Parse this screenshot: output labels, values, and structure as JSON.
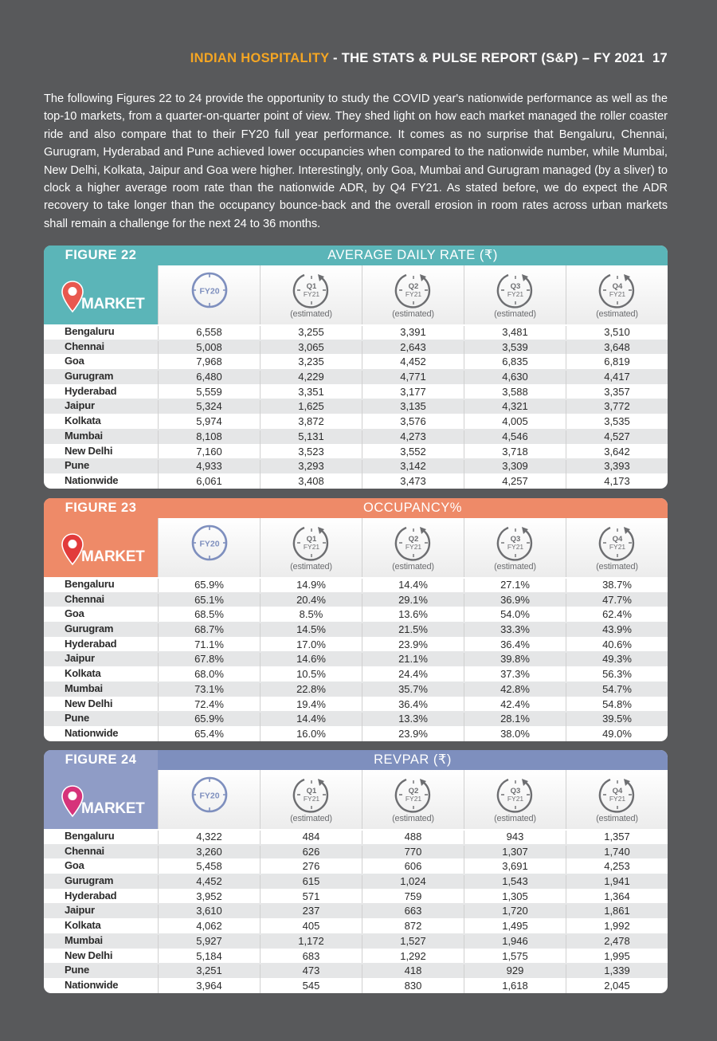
{
  "header": {
    "highlight": "INDIAN HOSPITALITY",
    "rest": " - THE STATS & PULSE REPORT (S&P) – FY 2021",
    "page": "17"
  },
  "intro": "The following Figures 22 to 24 provide the opportunity to study the COVID year's nationwide performance as well as the top-10 markets, from a quarter-on-quarter point of view. They shed light on how each market managed the roller coaster ride and also compare that to their FY20 full year performance. It comes as no surprise that Bengaluru, Chennai, Gurugram, Hyderabad and Pune achieved lower occupancies when compared to the nationwide number, while Mumbai, New Delhi, Kolkata, Jaipur and Goa were higher. Interestingly, only Goa, Mumbai and Gurugram managed (by a sliver) to clock a higher average room rate than the nationwide ADR, by Q4 FY21. As stated before, we do expect the ADR recovery to take longer than the occupancy bounce-back and the overall erosion in room rates across urban markets shall remain a challenge for the next 24 to 36 months.",
  "columns": {
    "market_label": "MARKET",
    "fy20_label": "FY20",
    "quarters": [
      {
        "q": "Q1",
        "fy": "FY21",
        "est": "(estimated)"
      },
      {
        "q": "Q2",
        "fy": "FY21",
        "est": "(estimated)"
      },
      {
        "q": "Q3",
        "fy": "FY21",
        "est": "(estimated)"
      },
      {
        "q": "Q4",
        "fy": "FY21",
        "est": "(estimated)"
      }
    ]
  },
  "figures": [
    {
      "title": "FIGURE 22",
      "metric": "AVERAGE DAILY RATE (₹)",
      "colors": {
        "band": "#5bb5b8",
        "market": "#5bb5b8",
        "pin": "#e8584f",
        "ring": "#7e8fbe"
      },
      "rows": [
        {
          "market": "Bengaluru",
          "values": [
            "6,558",
            "3,255",
            "3,391",
            "3,481",
            "3,510"
          ]
        },
        {
          "market": "Chennai",
          "values": [
            "5,008",
            "3,065",
            "2,643",
            "3,539",
            "3,648"
          ]
        },
        {
          "market": "Goa",
          "values": [
            "7,968",
            "3,235",
            "4,452",
            "6,835",
            "6,819"
          ]
        },
        {
          "market": "Gurugram",
          "values": [
            "6,480",
            "4,229",
            "4,771",
            "4,630",
            "4,417"
          ]
        },
        {
          "market": "Hyderabad",
          "values": [
            "5,559",
            "3,351",
            "3,177",
            "3,588",
            "3,357"
          ]
        },
        {
          "market": "Jaipur",
          "values": [
            "5,324",
            "1,625",
            "3,135",
            "4,321",
            "3,772"
          ]
        },
        {
          "market": "Kolkata",
          "values": [
            "5,974",
            "3,872",
            "3,576",
            "4,005",
            "3,535"
          ]
        },
        {
          "market": "Mumbai",
          "values": [
            "8,108",
            "5,131",
            "4,273",
            "4,546",
            "4,527"
          ]
        },
        {
          "market": "New Delhi",
          "values": [
            "7,160",
            "3,523",
            "3,552",
            "3,718",
            "3,642"
          ]
        },
        {
          "market": "Pune",
          "values": [
            "4,933",
            "3,293",
            "3,142",
            "3,309",
            "3,393"
          ]
        },
        {
          "market": "Nationwide",
          "values": [
            "6,061",
            "3,408",
            "3,473",
            "4,257",
            "4,173"
          ]
        }
      ]
    },
    {
      "title": "FIGURE 23",
      "metric": "OCCUPANCY%",
      "colors": {
        "band": "#ee8a68",
        "market": "#ee8a68",
        "pin": "#e23b3b",
        "ring": "#7e8fbe"
      },
      "rows": [
        {
          "market": "Bengaluru",
          "values": [
            "65.9%",
            "14.9%",
            "14.4%",
            "27.1%",
            "38.7%"
          ]
        },
        {
          "market": "Chennai",
          "values": [
            "65.1%",
            "20.4%",
            "29.1%",
            "36.9%",
            "47.7%"
          ]
        },
        {
          "market": "Goa",
          "values": [
            "68.5%",
            "8.5%",
            "13.6%",
            "54.0%",
            "62.4%"
          ]
        },
        {
          "market": "Gurugram",
          "values": [
            "68.7%",
            "14.5%",
            "21.5%",
            "33.3%",
            "43.9%"
          ]
        },
        {
          "market": "Hyderabad",
          "values": [
            "71.1%",
            "17.0%",
            "23.9%",
            "36.4%",
            "40.6%"
          ]
        },
        {
          "market": "Jaipur",
          "values": [
            "67.8%",
            "14.6%",
            "21.1%",
            "39.8%",
            "49.3%"
          ]
        },
        {
          "market": "Kolkata",
          "values": [
            "68.0%",
            "10.5%",
            "24.4%",
            "37.3%",
            "56.3%"
          ]
        },
        {
          "market": "Mumbai",
          "values": [
            "73.1%",
            "22.8%",
            "35.7%",
            "42.8%",
            "54.7%"
          ]
        },
        {
          "market": "New Delhi",
          "values": [
            "72.4%",
            "19.4%",
            "36.4%",
            "42.4%",
            "54.8%"
          ]
        },
        {
          "market": "Pune",
          "values": [
            "65.9%",
            "14.4%",
            "13.3%",
            "28.1%",
            "39.5%"
          ]
        },
        {
          "market": "Nationwide",
          "values": [
            "65.4%",
            "16.0%",
            "23.9%",
            "38.0%",
            "49.0%"
          ]
        }
      ]
    },
    {
      "title": "FIGURE 24",
      "metric": "REVPAR (₹)",
      "colors": {
        "band": "#7e8fbe",
        "market": "#8f9cc6",
        "pin": "#d6337a",
        "ring": "#7e8fbe"
      },
      "rows": [
        {
          "market": "Bengaluru",
          "values": [
            "4,322",
            "484",
            "488",
            "943",
            "1,357"
          ]
        },
        {
          "market": "Chennai",
          "values": [
            "3,260",
            "626",
            "770",
            "1,307",
            "1,740"
          ]
        },
        {
          "market": "Goa",
          "values": [
            "5,458",
            "276",
            "606",
            "3,691",
            "4,253"
          ]
        },
        {
          "market": "Gurugram",
          "values": [
            "4,452",
            "615",
            "1,024",
            "1,543",
            "1,941"
          ]
        },
        {
          "market": "Hyderabad",
          "values": [
            "3,952",
            "571",
            "759",
            "1,305",
            "1,364"
          ]
        },
        {
          "market": "Jaipur",
          "values": [
            "3,610",
            "237",
            "663",
            "1,720",
            "1,861"
          ]
        },
        {
          "market": "Kolkata",
          "values": [
            "4,062",
            "405",
            "872",
            "1,495",
            "1,992"
          ]
        },
        {
          "market": "Mumbai",
          "values": [
            "5,927",
            "1,172",
            "1,527",
            "1,946",
            "2,478"
          ]
        },
        {
          "market": "New Delhi",
          "values": [
            "5,184",
            "683",
            "1,292",
            "1,575",
            "1,995"
          ]
        },
        {
          "market": "Pune",
          "values": [
            "3,251",
            "473",
            "418",
            "929",
            "1,339"
          ]
        },
        {
          "market": "Nationwide",
          "values": [
            "3,964",
            "545",
            "830",
            "1,618",
            "2,045"
          ]
        }
      ]
    }
  ]
}
